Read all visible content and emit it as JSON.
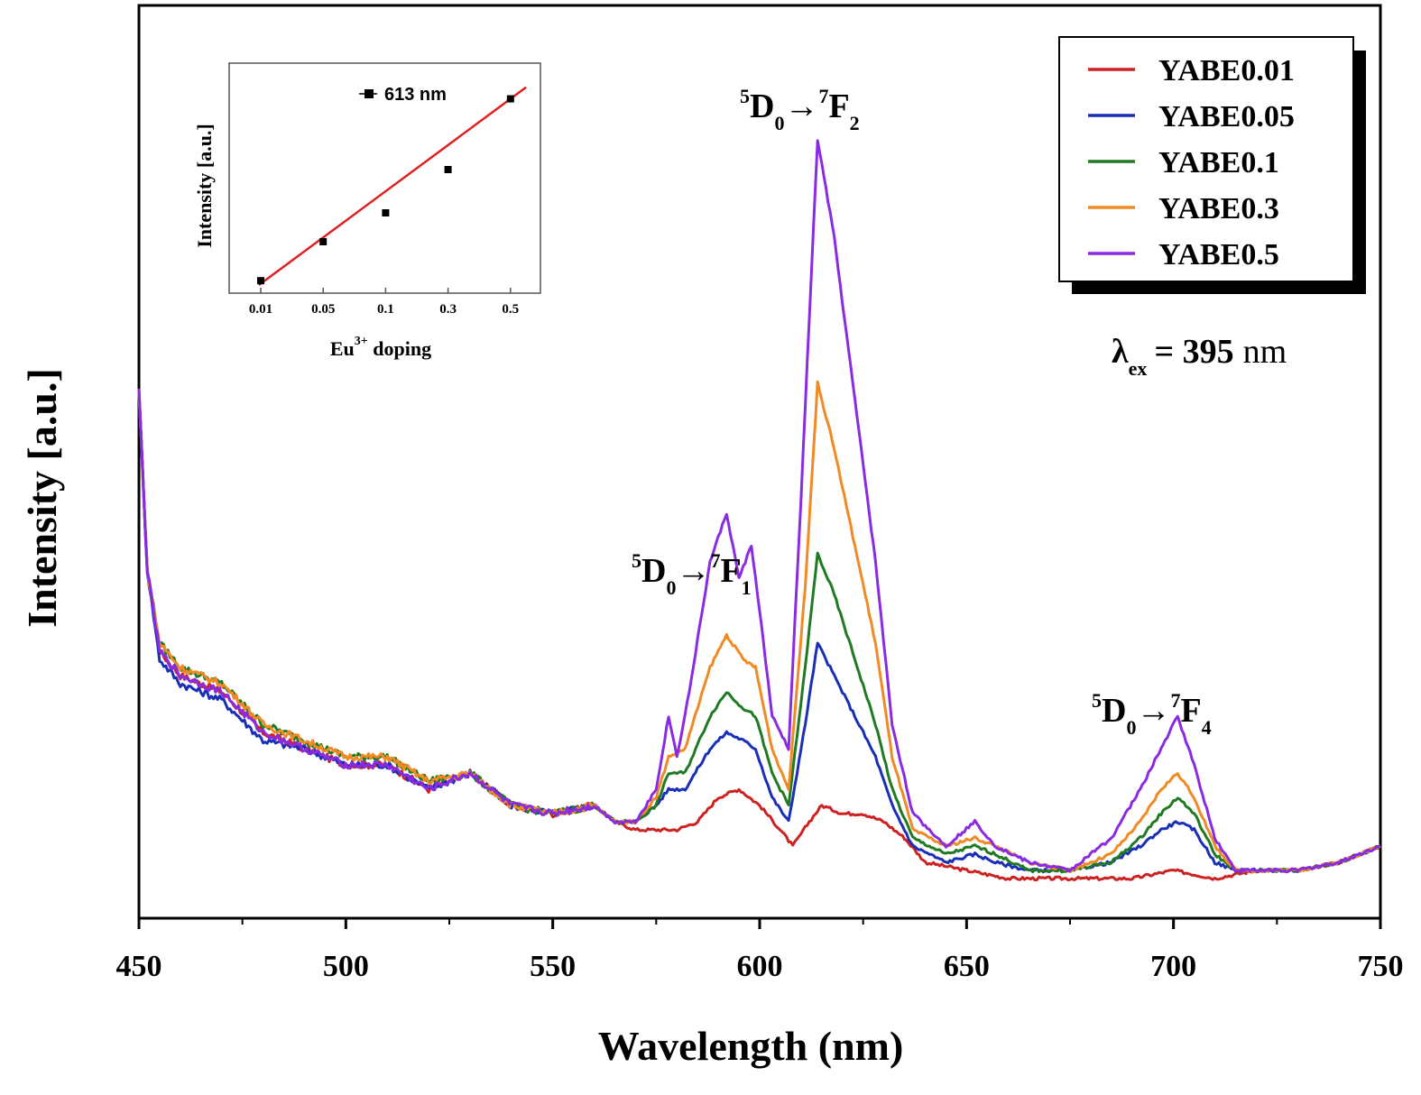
{
  "chart_data": [
    {
      "type": "line",
      "xlabel": "Wavelength (nm)",
      "ylabel": "Intensity [a.u.]",
      "xlim": [
        450,
        750
      ],
      "xticks": [
        450,
        500,
        550,
        600,
        650,
        700,
        750
      ],
      "yticks": [],
      "legend_position": "top-right",
      "grid": false,
      "excitation_label": {
        "prefix": "λ",
        "subscript": "ex",
        "value": "= 395",
        "unit": "nm"
      },
      "annotations": [
        {
          "id": "f1",
          "sup1": "5",
          "base1": "D",
          "sub1": "0",
          "arrow": "→",
          "sup2": "7",
          "base2": "F",
          "sub2": "1",
          "x": 592
        },
        {
          "id": "f2",
          "sup1": "5",
          "base1": "D",
          "sub1": "0",
          "arrow": "→",
          "sup2": "7",
          "base2": "F",
          "sub2": "2",
          "x": 614
        },
        {
          "id": "f4",
          "sup1": "5",
          "base1": "D",
          "sub1": "0",
          "arrow": "→",
          "sup2": "7",
          "base2": "F",
          "sub2": "4",
          "x": 702
        }
      ],
      "series": [
        {
          "name": "YABE0.01",
          "color": "#cc2222",
          "peak_scale": 0.03,
          "points": [
            [
              450,
              59
            ],
            [
              452,
              37
            ],
            [
              455,
              27
            ],
            [
              460,
              24
            ],
            [
              470,
              22
            ],
            [
              480,
              17
            ],
            [
              490,
              15
            ],
            [
              500,
              13
            ],
            [
              510,
              13
            ],
            [
              520,
              10
            ],
            [
              530,
              12
            ],
            [
              540,
              8
            ],
            [
              550,
              7
            ],
            [
              560,
              8
            ],
            [
              565,
              6
            ],
            [
              570,
              5
            ],
            [
              580,
              5
            ],
            [
              585,
              6
            ],
            [
              590,
              9
            ],
            [
              595,
              10
            ],
            [
              600,
              8
            ],
            [
              605,
              5
            ],
            [
              608,
              3
            ],
            [
              612,
              6
            ],
            [
              615,
              8
            ],
            [
              620,
              7
            ],
            [
              625,
              7
            ],
            [
              630,
              6
            ],
            [
              635,
              4
            ],
            [
              640,
              1
            ],
            [
              650,
              0
            ],
            [
              660,
              -1
            ],
            [
              670,
              -1
            ],
            [
              680,
              -1
            ],
            [
              690,
              -1
            ],
            [
              700,
              0
            ],
            [
              710,
              -1
            ],
            [
              720,
              0
            ],
            [
              730,
              0
            ],
            [
              740,
              1
            ],
            [
              750,
              3
            ]
          ]
        },
        {
          "name": "YABE0.05",
          "color": "#1a2fb8",
          "peak_scale": 0.3,
          "points": [
            [
              450,
              59
            ],
            [
              452,
              37
            ],
            [
              455,
              26
            ],
            [
              460,
              23
            ],
            [
              470,
              21
            ],
            [
              480,
              16
            ],
            [
              490,
              15
            ],
            [
              500,
              13
            ],
            [
              510,
              13
            ],
            [
              520,
              10
            ],
            [
              530,
              12
            ],
            [
              540,
              8
            ],
            [
              550,
              7
            ],
            [
              560,
              8
            ],
            [
              565,
              6
            ],
            [
              570,
              6
            ],
            [
              575,
              8
            ],
            [
              578,
              10
            ],
            [
              582,
              10
            ],
            [
              588,
              15
            ],
            [
              592,
              17
            ],
            [
              596,
              16
            ],
            [
              599,
              15
            ],
            [
              603,
              9
            ],
            [
              607,
              6
            ],
            [
              611,
              18
            ],
            [
              614,
              28
            ],
            [
              618,
              24
            ],
            [
              623,
              19
            ],
            [
              628,
              14
            ],
            [
              632,
              8
            ],
            [
              637,
              3
            ],
            [
              645,
              1
            ],
            [
              652,
              2
            ],
            [
              657,
              1
            ],
            [
              665,
              0
            ],
            [
              675,
              0
            ],
            [
              685,
              1
            ],
            [
              692,
              3
            ],
            [
              697,
              5
            ],
            [
              701,
              6
            ],
            [
              705,
              5
            ],
            [
              710,
              1
            ],
            [
              715,
              0
            ],
            [
              720,
              0
            ],
            [
              730,
              0
            ],
            [
              740,
              1
            ],
            [
              750,
              3
            ]
          ]
        },
        {
          "name": "YABE0.1",
          "color": "#1f7a22",
          "peak_scale": 0.45,
          "points": [
            [
              450,
              59
            ],
            [
              452,
              37
            ],
            [
              455,
              28
            ],
            [
              460,
              25
            ],
            [
              470,
              23
            ],
            [
              480,
              18
            ],
            [
              490,
              16
            ],
            [
              500,
              14
            ],
            [
              510,
              14
            ],
            [
              520,
              11
            ],
            [
              530,
              12
            ],
            [
              540,
              8
            ],
            [
              550,
              7
            ],
            [
              560,
              8
            ],
            [
              565,
              6
            ],
            [
              570,
              6
            ],
            [
              575,
              8
            ],
            [
              578,
              12
            ],
            [
              582,
              12
            ],
            [
              588,
              19
            ],
            [
              592,
              22
            ],
            [
              596,
              20
            ],
            [
              599,
              19
            ],
            [
              603,
              12
            ],
            [
              607,
              8
            ],
            [
              611,
              25
            ],
            [
              614,
              39
            ],
            [
              618,
              34
            ],
            [
              623,
              26
            ],
            [
              628,
              18
            ],
            [
              632,
              10
            ],
            [
              637,
              4
            ],
            [
              645,
              2
            ],
            [
              652,
              3
            ],
            [
              657,
              2
            ],
            [
              665,
              0
            ],
            [
              675,
              0
            ],
            [
              685,
              1
            ],
            [
              692,
              4
            ],
            [
              697,
              7
            ],
            [
              701,
              9
            ],
            [
              705,
              7
            ],
            [
              710,
              2
            ],
            [
              715,
              0
            ],
            [
              720,
              0
            ],
            [
              730,
              0
            ],
            [
              740,
              1
            ],
            [
              750,
              3
            ]
          ]
        },
        {
          "name": "YABE0.3",
          "color": "#f08a24",
          "peak_scale": 0.7,
          "points": [
            [
              450,
              59
            ],
            [
              452,
              37
            ],
            [
              455,
              28
            ],
            [
              460,
              25
            ],
            [
              470,
              23
            ],
            [
              480,
              18
            ],
            [
              490,
              16
            ],
            [
              500,
              14
            ],
            [
              510,
              14
            ],
            [
              520,
              11
            ],
            [
              530,
              12
            ],
            [
              540,
              8
            ],
            [
              550,
              7
            ],
            [
              560,
              8
            ],
            [
              565,
              6
            ],
            [
              570,
              6
            ],
            [
              575,
              9
            ],
            [
              578,
              14
            ],
            [
              582,
              15
            ],
            [
              588,
              25
            ],
            [
              592,
              29
            ],
            [
              596,
              26
            ],
            [
              599,
              25
            ],
            [
              603,
              15
            ],
            [
              607,
              10
            ],
            [
              611,
              35
            ],
            [
              614,
              60
            ],
            [
              618,
              52
            ],
            [
              623,
              40
            ],
            [
              628,
              28
            ],
            [
              632,
              14
            ],
            [
              637,
              5
            ],
            [
              645,
              3
            ],
            [
              652,
              4
            ],
            [
              657,
              3
            ],
            [
              665,
              1
            ],
            [
              675,
              0
            ],
            [
              685,
              2
            ],
            [
              692,
              6
            ],
            [
              697,
              10
            ],
            [
              701,
              12
            ],
            [
              705,
              9
            ],
            [
              710,
              3
            ],
            [
              715,
              0
            ],
            [
              720,
              0
            ],
            [
              730,
              0
            ],
            [
              740,
              1
            ],
            [
              750,
              3
            ]
          ]
        },
        {
          "name": "YABE0.5",
          "color": "#8a2be2",
          "peak_scale": 1.0,
          "points": [
            [
              450,
              59
            ],
            [
              452,
              37
            ],
            [
              455,
              27
            ],
            [
              460,
              24
            ],
            [
              470,
              22
            ],
            [
              480,
              17
            ],
            [
              490,
              15
            ],
            [
              500,
              13
            ],
            [
              510,
              13
            ],
            [
              520,
              10
            ],
            [
              530,
              12
            ],
            [
              540,
              8
            ],
            [
              550,
              7
            ],
            [
              560,
              8
            ],
            [
              565,
              6
            ],
            [
              570,
              6
            ],
            [
              575,
              10
            ],
            [
              578,
              19
            ],
            [
              580,
              14
            ],
            [
              583,
              22
            ],
            [
              588,
              38
            ],
            [
              592,
              44
            ],
            [
              595,
              36
            ],
            [
              598,
              40
            ],
            [
              600,
              32
            ],
            [
              603,
              19
            ],
            [
              607,
              15
            ],
            [
              610,
              46
            ],
            [
              614,
              90
            ],
            [
              618,
              78
            ],
            [
              623,
              58
            ],
            [
              628,
              38
            ],
            [
              632,
              18
            ],
            [
              637,
              7
            ],
            [
              645,
              3
            ],
            [
              652,
              6
            ],
            [
              657,
              3
            ],
            [
              665,
              1
            ],
            [
              675,
              0
            ],
            [
              685,
              4
            ],
            [
              692,
              10
            ],
            [
              697,
              15
            ],
            [
              701,
              19
            ],
            [
              705,
              13
            ],
            [
              710,
              4
            ],
            [
              715,
              0
            ],
            [
              720,
              0
            ],
            [
              730,
              0
            ],
            [
              740,
              1
            ],
            [
              750,
              3
            ]
          ]
        }
      ]
    },
    {
      "type": "scatter",
      "xlabel_base": "Eu",
      "xlabel_sup": "3+",
      "xlabel_rest": " doping",
      "ylabel": "Intensity [a.u.]",
      "categories": [
        "0.01",
        "0.05",
        "0.1",
        "0.3",
        "0.5"
      ],
      "values": [
        3,
        30,
        50,
        80,
        129
      ],
      "fit_line": [
        [
          -0.03,
          0
        ],
        [
          4.25,
          137
        ]
      ],
      "series": [
        {
          "name": "613 nm",
          "color": "#000000",
          "fit_color": "#e02020"
        }
      ],
      "ylim": [
        -10,
        165
      ]
    }
  ]
}
